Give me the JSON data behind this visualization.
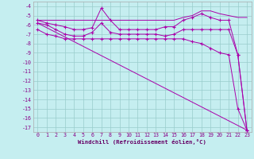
{
  "xlabel": "Windchill (Refroidissement éolien,°C)",
  "bg_color": "#c5eef0",
  "grid_color": "#99cccc",
  "line_color": "#aa00aa",
  "ylim": [
    -17.5,
    -3.5
  ],
  "xlim": [
    -0.5,
    23.5
  ],
  "yticks": [
    -4,
    -5,
    -6,
    -7,
    -8,
    -9,
    -10,
    -11,
    -12,
    -13,
    -14,
    -15,
    -16,
    -17
  ],
  "xticks": [
    0,
    1,
    2,
    3,
    4,
    5,
    6,
    7,
    8,
    9,
    10,
    11,
    12,
    13,
    14,
    15,
    16,
    17,
    18,
    19,
    20,
    21,
    22,
    23
  ],
  "series": [
    {
      "x": [
        0,
        1,
        2,
        3,
        4,
        5,
        6,
        7,
        8,
        9,
        10,
        11,
        12,
        13,
        14,
        15,
        16,
        17,
        18,
        19,
        20,
        21,
        22,
        23
      ],
      "y": [
        -5.5,
        -5.5,
        -5.5,
        -5.5,
        -5.5,
        -5.5,
        -5.5,
        -5.5,
        -5.5,
        -5.5,
        -5.5,
        -5.5,
        -5.5,
        -5.5,
        -5.5,
        -5.5,
        -5.2,
        -5.0,
        -4.5,
        -4.5,
        -4.8,
        -5.0,
        -5.2,
        -5.2
      ],
      "has_markers": false
    },
    {
      "x": [
        0,
        1,
        2,
        3,
        4,
        5,
        6,
        7,
        8,
        9,
        10,
        11,
        12,
        13,
        14,
        15,
        16,
        17,
        18,
        19,
        20,
        21,
        22,
        23
      ],
      "y": [
        -5.5,
        -5.8,
        -6.0,
        -6.2,
        -6.5,
        -6.5,
        -6.3,
        -4.2,
        -5.5,
        -6.5,
        -6.5,
        -6.5,
        -6.5,
        -6.5,
        -6.2,
        -6.2,
        -5.5,
        -5.2,
        -4.8,
        -5.2,
        -5.5,
        -5.5,
        -9.2,
        -17.3
      ],
      "has_markers": true
    },
    {
      "x": [
        0,
        1,
        2,
        3,
        4,
        5,
        6,
        7,
        8,
        9,
        10,
        11,
        12,
        13,
        14,
        15,
        16,
        17,
        18,
        19,
        20,
        21,
        22,
        23
      ],
      "y": [
        -5.8,
        -6.0,
        -6.5,
        -7.0,
        -7.2,
        -7.2,
        -6.8,
        -5.8,
        -6.8,
        -7.0,
        -7.0,
        -7.0,
        -7.0,
        -7.0,
        -7.2,
        -7.0,
        -6.5,
        -6.5,
        -6.5,
        -6.5,
        -6.5,
        -6.5,
        -9.2,
        -17.3
      ],
      "has_markers": true
    },
    {
      "x": [
        0,
        23
      ],
      "y": [
        -5.8,
        -17.3
      ],
      "has_markers": false
    },
    {
      "x": [
        0,
        1,
        2,
        3,
        4,
        5,
        6,
        7,
        8,
        9,
        10,
        11,
        12,
        13,
        14,
        15,
        16,
        17,
        18,
        19,
        20,
        21,
        22,
        23
      ],
      "y": [
        -6.5,
        -7.0,
        -7.2,
        -7.5,
        -7.5,
        -7.5,
        -7.5,
        -7.5,
        -7.5,
        -7.5,
        -7.5,
        -7.5,
        -7.5,
        -7.5,
        -7.5,
        -7.5,
        -7.5,
        -7.8,
        -8.0,
        -8.5,
        -9.0,
        -9.2,
        -15.0,
        -17.3
      ],
      "has_markers": true
    }
  ]
}
